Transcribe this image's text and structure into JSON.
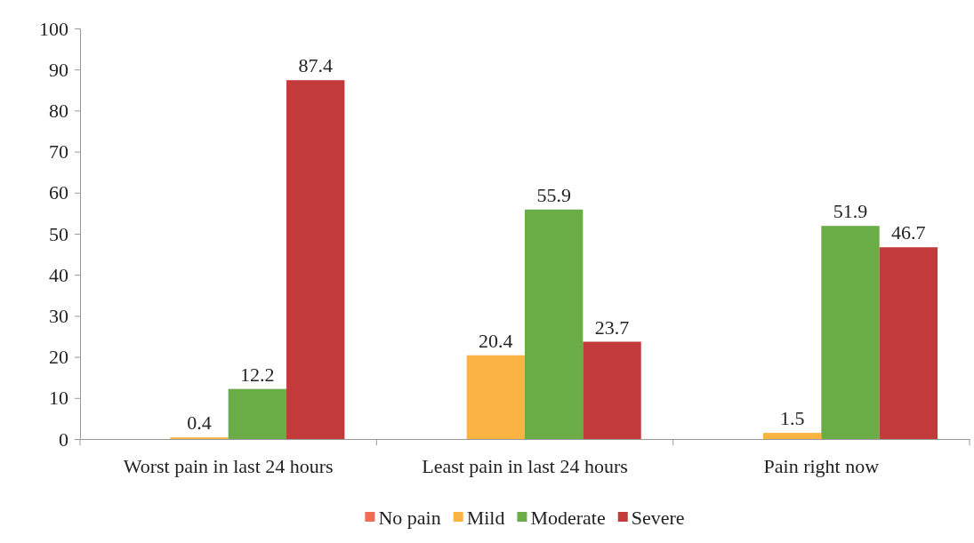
{
  "chart_data": {
    "type": "bar",
    "categories": [
      "Worst pain in last 24 hours",
      "Least pain in last 24 hours",
      "Pain right now"
    ],
    "series": [
      {
        "name": "No pain",
        "color": "#f26b55",
        "values": [
          0,
          0,
          0
        ],
        "value_labels": [
          null,
          null,
          null
        ]
      },
      {
        "name": "Mild",
        "color": "#fbb343",
        "values": [
          0.4,
          20.4,
          1.5
        ],
        "value_labels": [
          "0.4",
          "20.4",
          "1.5"
        ]
      },
      {
        "name": "Moderate",
        "color": "#6aac46",
        "values": [
          12.2,
          55.9,
          51.9
        ],
        "value_labels": [
          "12.2",
          "55.9",
          "51.9"
        ]
      },
      {
        "name": "Severe",
        "color": "#c23a3a",
        "values": [
          87.4,
          23.7,
          46.7
        ],
        "value_labels": [
          "87.4",
          "23.7",
          "46.7"
        ]
      }
    ],
    "ylim": [
      0,
      100
    ],
    "yticks": [
      0,
      10,
      20,
      30,
      40,
      50,
      60,
      70,
      80,
      90,
      100
    ],
    "grid": false,
    "legend": "bottom"
  }
}
